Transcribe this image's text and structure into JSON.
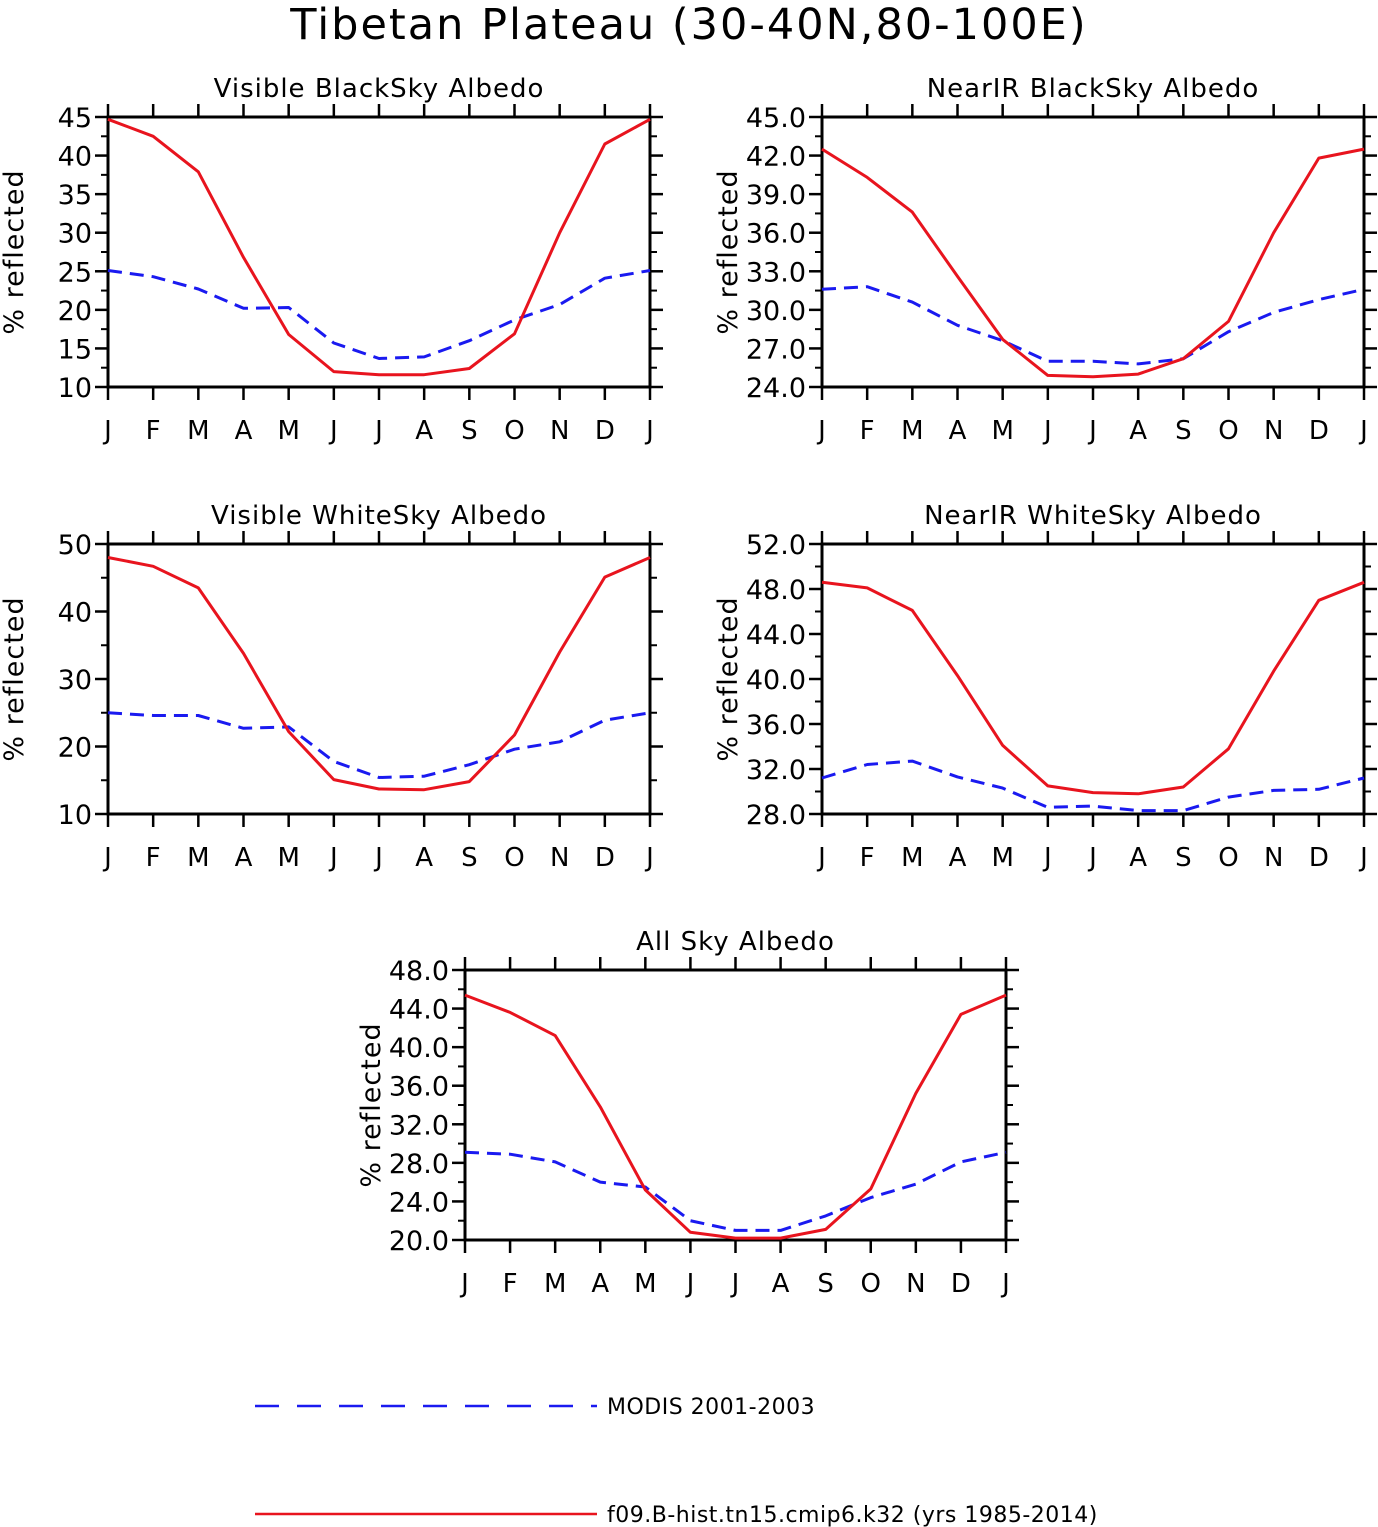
{
  "figure_title": "Tibetan Plateau (30-40N,80-100E)",
  "legend": [
    {
      "label": "MODIS 2001-2003",
      "color": "#1a1af0",
      "style": "dashed"
    },
    {
      "label": "f09.B-hist.tn15.cmip6.k32 (yrs 1985-2014)",
      "color": "#e8141e",
      "style": "solid"
    }
  ],
  "chart_data": [
    {
      "type": "line",
      "title": "Visible BlackSky Albedo",
      "xlabel": "",
      "ylabel": "% reflected",
      "x_ticklabels": [
        "J",
        "F",
        "M",
        "A",
        "M",
        "J",
        "J",
        "A",
        "S",
        "O",
        "N",
        "D",
        "J"
      ],
      "ylim": [
        10,
        45
      ],
      "y_ticks": [
        10,
        15,
        20,
        25,
        30,
        35,
        40,
        45
      ],
      "y_tick_labels": [
        "10",
        "15",
        "20",
        "25",
        "30",
        "35",
        "40",
        "45"
      ],
      "series": [
        {
          "name": "MODIS 2001-2003",
          "values": [
            25.1,
            24.3,
            22.7,
            20.2,
            20.3,
            15.7,
            13.7,
            13.9,
            16.0,
            18.7,
            20.7,
            24.1,
            25.1
          ]
        },
        {
          "name": "f09.B-hist.tn15.cmip6.k32 (yrs 1985-2014)",
          "values": [
            44.7,
            42.5,
            37.9,
            26.8,
            16.8,
            12.0,
            11.6,
            11.6,
            12.4,
            16.9,
            30.0,
            41.5,
            44.7
          ]
        }
      ]
    },
    {
      "type": "line",
      "title": "NearIR BlackSky Albedo",
      "xlabel": "",
      "ylabel": "% reflected",
      "x_ticklabels": [
        "J",
        "F",
        "M",
        "A",
        "M",
        "J",
        "J",
        "A",
        "S",
        "O",
        "N",
        "D",
        "J"
      ],
      "ylim": [
        24.0,
        45.0
      ],
      "y_ticks": [
        24,
        27,
        30,
        33,
        36,
        39,
        42,
        45
      ],
      "y_tick_labels": [
        "24.0",
        "27.0",
        "30.0",
        "33.0",
        "36.0",
        "39.0",
        "42.0",
        "45.0"
      ],
      "series": [
        {
          "name": "MODIS 2001-2003",
          "values": [
            31.6,
            31.8,
            30.6,
            28.8,
            27.6,
            26.0,
            26.0,
            25.8,
            26.2,
            28.3,
            29.8,
            30.8,
            31.6
          ]
        },
        {
          "name": "f09.B-hist.tn15.cmip6.k32 (yrs 1985-2014)",
          "values": [
            42.5,
            40.3,
            37.6,
            32.6,
            27.7,
            24.9,
            24.8,
            25.0,
            26.2,
            29.1,
            36.0,
            41.8,
            42.5
          ]
        }
      ]
    },
    {
      "type": "line",
      "title": "Visible WhiteSky Albedo",
      "xlabel": "",
      "ylabel": "% reflected",
      "x_ticklabels": [
        "J",
        "F",
        "M",
        "A",
        "M",
        "J",
        "J",
        "A",
        "S",
        "O",
        "N",
        "D",
        "J"
      ],
      "ylim": [
        10,
        50
      ],
      "y_ticks": [
        10,
        20,
        30,
        40,
        50
      ],
      "y_tick_labels": [
        "10",
        "20",
        "30",
        "40",
        "50"
      ],
      "series": [
        {
          "name": "MODIS 2001-2003",
          "values": [
            25.0,
            24.6,
            24.6,
            22.7,
            22.9,
            17.8,
            15.4,
            15.6,
            17.3,
            19.6,
            20.7,
            23.9,
            25.0
          ]
        },
        {
          "name": "f09.B-hist.tn15.cmip6.k32 (yrs 1985-2014)",
          "values": [
            48.0,
            46.7,
            43.5,
            33.8,
            22.2,
            15.1,
            13.7,
            13.6,
            14.8,
            21.7,
            34.0,
            45.1,
            48.0
          ]
        }
      ]
    },
    {
      "type": "line",
      "title": "NearIR WhiteSky Albedo",
      "xlabel": "",
      "ylabel": "% reflected",
      "x_ticklabels": [
        "J",
        "F",
        "M",
        "A",
        "M",
        "J",
        "J",
        "A",
        "S",
        "O",
        "N",
        "D",
        "J"
      ],
      "ylim": [
        28.0,
        52.0
      ],
      "y_ticks": [
        28,
        32,
        36,
        40,
        44,
        48,
        52
      ],
      "y_tick_labels": [
        "28.0",
        "32.0",
        "36.0",
        "40.0",
        "44.0",
        "48.0",
        "52.0"
      ],
      "series": [
        {
          "name": "MODIS 2001-2003",
          "values": [
            31.2,
            32.4,
            32.7,
            31.3,
            30.3,
            28.6,
            28.7,
            28.3,
            28.3,
            29.5,
            30.1,
            30.2,
            31.2
          ]
        },
        {
          "name": "f09.B-hist.tn15.cmip6.k32 (yrs 1985-2014)",
          "values": [
            48.6,
            48.1,
            46.1,
            40.3,
            34.1,
            30.5,
            29.9,
            29.8,
            30.4,
            33.8,
            40.7,
            47.0,
            48.6
          ]
        }
      ]
    },
    {
      "type": "line",
      "title": "All Sky Albedo",
      "xlabel": "",
      "ylabel": "% reflected",
      "x_ticklabels": [
        "J",
        "F",
        "M",
        "A",
        "M",
        "J",
        "J",
        "A",
        "S",
        "O",
        "N",
        "D",
        "J"
      ],
      "ylim": [
        20.0,
        48.0
      ],
      "y_ticks": [
        20,
        24,
        28,
        32,
        36,
        40,
        44,
        48
      ],
      "y_tick_labels": [
        "20.0",
        "24.0",
        "28.0",
        "32.0",
        "36.0",
        "40.0",
        "44.0",
        "48.0"
      ],
      "series": [
        {
          "name": "MODIS 2001-2003",
          "values": [
            29.1,
            28.9,
            28.1,
            26.0,
            25.5,
            22.0,
            21.0,
            21.0,
            22.5,
            24.4,
            25.8,
            28.1,
            29.1
          ]
        },
        {
          "name": "f09.B-hist.tn15.cmip6.k32 (yrs 1985-2014)",
          "values": [
            45.4,
            43.6,
            41.2,
            33.8,
            25.2,
            20.8,
            20.2,
            20.2,
            21.1,
            25.3,
            35.2,
            43.4,
            45.4
          ]
        }
      ]
    }
  ]
}
